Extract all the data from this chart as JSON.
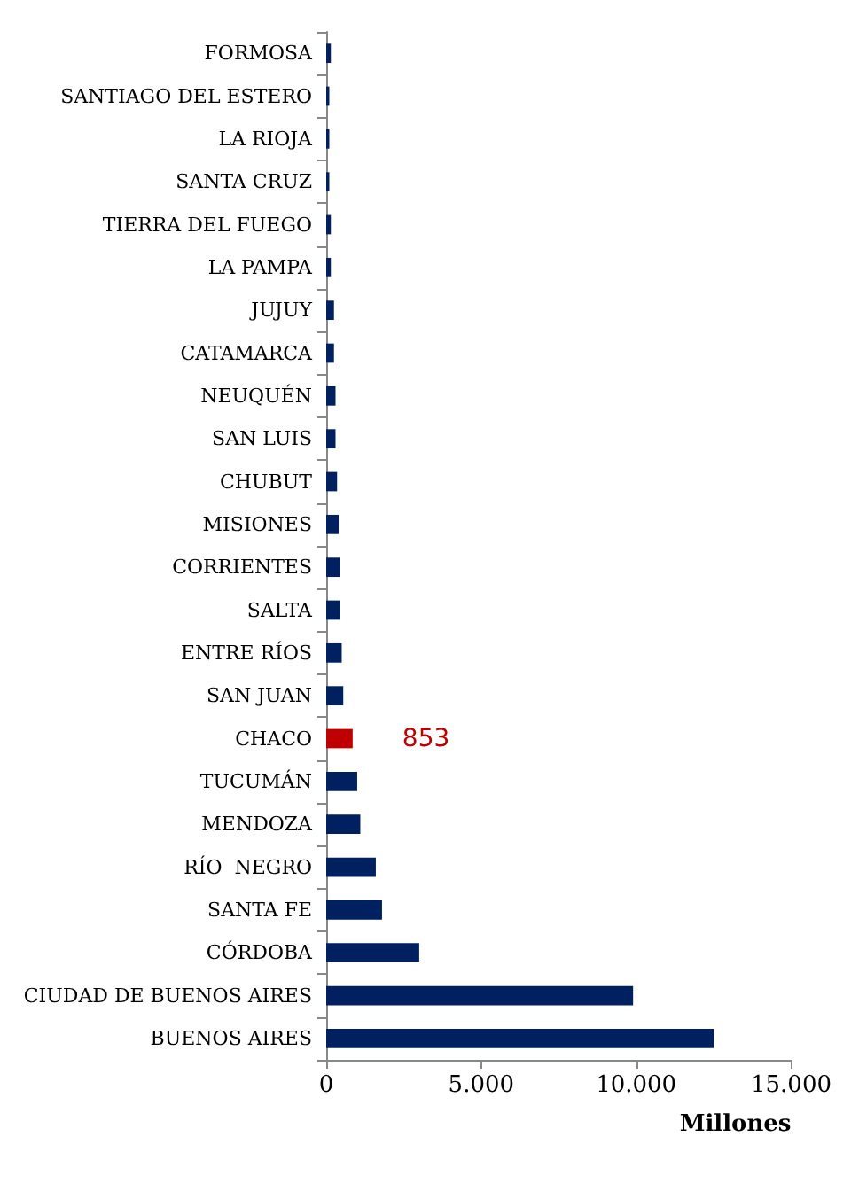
{
  "chart_data": {
    "type": "bar",
    "orientation": "horizontal",
    "xlabel": "Millones",
    "categories": [
      "FORMOSA",
      "SANTIAGO DEL ESTERO",
      "LA RIOJA",
      "SANTA CRUZ",
      "TIERRA DEL FUEGO",
      "LA PAMPA",
      "JUJUY",
      "CATAMARCA",
      "NEUQUÉN",
      "SAN LUIS",
      "CHUBUT",
      "MISIONES",
      "CORRIENTES",
      "SALTA",
      "ENTRE RÍOS",
      "SAN JUAN",
      "CHACO",
      "TUCUMÁN",
      "MENDOZA",
      "RÍO  NEGRO",
      "SANTA FE",
      "CÓRDOBA",
      "CIUDAD DE BUENOS AIRES",
      "BUENOS AIRES"
    ],
    "values": [
      150,
      100,
      100,
      100,
      150,
      150,
      250,
      250,
      300,
      300,
      350,
      400,
      450,
      450,
      500,
      550,
      853,
      1000,
      1100,
      1600,
      1800,
      3000,
      9900,
      12500
    ],
    "colors": [
      "#002060",
      "#002060",
      "#002060",
      "#002060",
      "#002060",
      "#002060",
      "#002060",
      "#002060",
      "#002060",
      "#002060",
      "#002060",
      "#002060",
      "#002060",
      "#002060",
      "#002060",
      "#002060",
      "#c00000",
      "#002060",
      "#002060",
      "#002060",
      "#002060",
      "#002060",
      "#002060",
      "#002060"
    ],
    "value_labels": [
      null,
      null,
      null,
      null,
      null,
      null,
      null,
      null,
      null,
      null,
      null,
      null,
      null,
      null,
      null,
      null,
      "853",
      null,
      null,
      null,
      null,
      null,
      null,
      null
    ],
    "xlim": [
      0,
      15000
    ],
    "xticks": [
      0,
      {
        "value": 5000,
        "label": "5.000"
      },
      {
        "value": 10000,
        "label": "10.000"
      },
      {
        "value": 15000,
        "label": "15.000"
      }
    ]
  }
}
